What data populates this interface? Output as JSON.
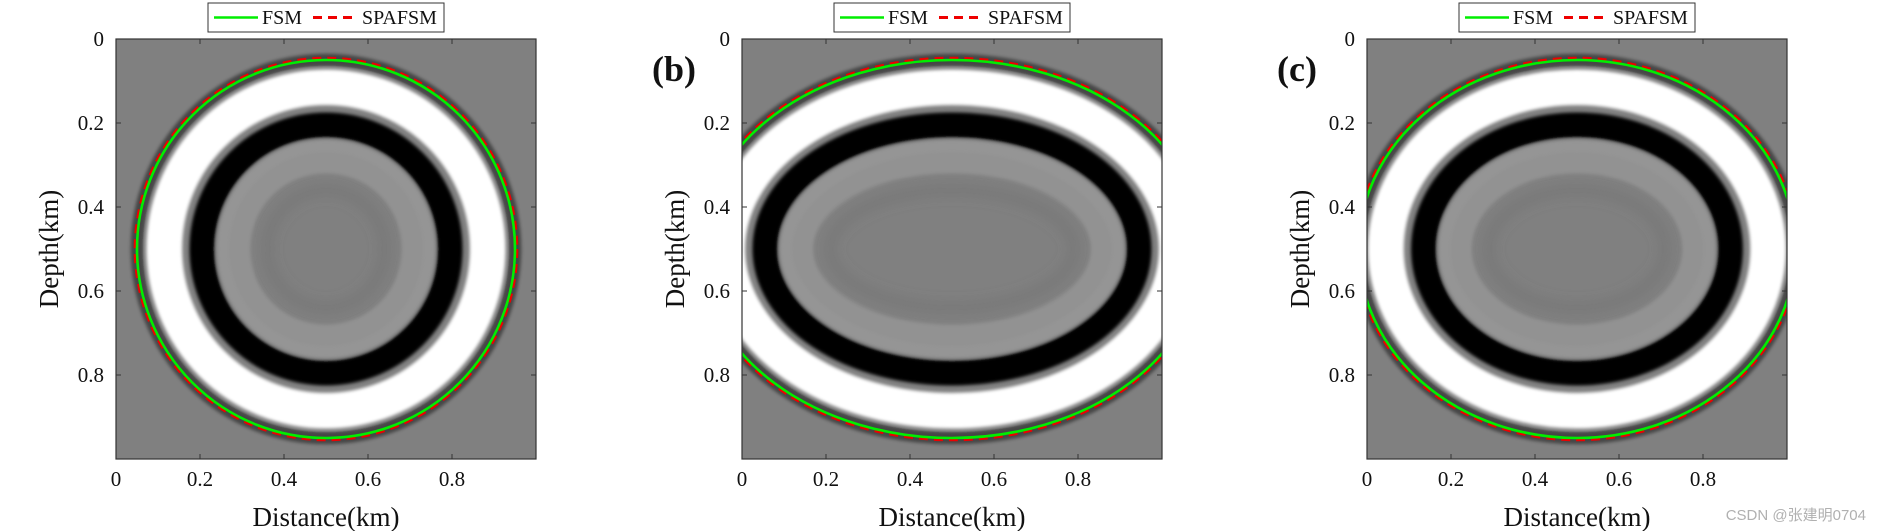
{
  "watermark": "CSDN @张建明0704",
  "chart_data": [
    {
      "type": "heatmap",
      "panel_label": "",
      "xlabel": "Distance(km)",
      "ylabel": "Depth(km)",
      "xlim": [
        0,
        1
      ],
      "ylim": [
        0,
        1
      ],
      "x_ticks": [
        "0",
        "0.2",
        "0.4",
        "0.6",
        "0.8"
      ],
      "y_ticks": [
        "0",
        "0.2",
        "0.4",
        "0.6",
        "0.8"
      ],
      "legend": {
        "placement": "top-center",
        "entries": [
          "FSM",
          "SPAFSM"
        ]
      },
      "wavefront": {
        "center": [
          0.5,
          0.5
        ],
        "radius_x": 0.45,
        "radius_z": 0.45
      },
      "series": [
        {
          "name": "FSM",
          "color": "#00ee00",
          "style": "solid"
        },
        {
          "name": "SPAFSM",
          "color": "#ee0000",
          "style": "dashed"
        }
      ]
    },
    {
      "type": "heatmap",
      "panel_label": "(b)",
      "xlabel": "Distance(km)",
      "ylabel": "Depth(km)",
      "xlim": [
        0,
        1
      ],
      "ylim": [
        0,
        1
      ],
      "x_ticks": [
        "0",
        "0.2",
        "0.4",
        "0.6",
        "0.8"
      ],
      "y_ticks": [
        "0",
        "0.2",
        "0.4",
        "0.6",
        "0.8"
      ],
      "legend": {
        "placement": "top-center",
        "entries": [
          "FSM",
          "SPAFSM"
        ]
      },
      "wavefront": {
        "center": [
          0.5,
          0.5
        ],
        "radius_x": 0.6,
        "radius_z": 0.45
      },
      "series": [
        {
          "name": "FSM",
          "color": "#00ee00",
          "style": "solid"
        },
        {
          "name": "SPAFSM",
          "color": "#ee0000",
          "style": "dashed"
        }
      ]
    },
    {
      "type": "heatmap",
      "panel_label": "(c)",
      "xlabel": "Distance(km)",
      "ylabel": "Depth(km)",
      "xlim": [
        0,
        1
      ],
      "ylim": [
        0,
        1
      ],
      "x_ticks": [
        "0",
        "0.2",
        "0.4",
        "0.6",
        "0.8"
      ],
      "y_ticks": [
        "0",
        "0.2",
        "0.4",
        "0.6",
        "0.8"
      ],
      "legend": {
        "placement": "top-center",
        "entries": [
          "FSM",
          "SPAFSM"
        ]
      },
      "wavefront": {
        "center": [
          0.5,
          0.5
        ],
        "radius_x": 0.52,
        "radius_z": 0.45
      },
      "series": [
        {
          "name": "FSM",
          "color": "#00ee00",
          "style": "solid"
        },
        {
          "name": "SPAFSM",
          "color": "#ee0000",
          "style": "dashed"
        }
      ]
    }
  ]
}
